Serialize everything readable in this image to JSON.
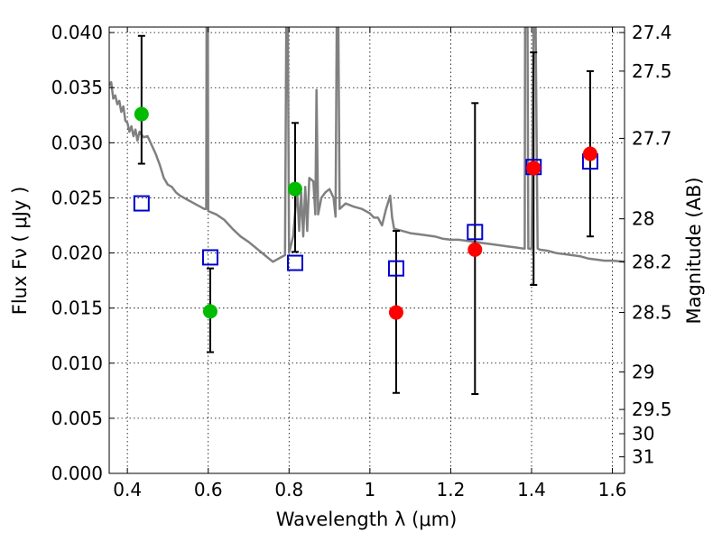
{
  "chart_data": {
    "type": "scatter",
    "xlabel": "Wavelength  λ (μm)",
    "ylabel": "Flux  Fν  ( μJy )",
    "y2label": "Magnitude (AB)",
    "xlim": [
      0.355,
      1.63
    ],
    "ylim": [
      0.0,
      0.0405
    ],
    "xticks": [
      0.4,
      0.6,
      0.8,
      1.0,
      1.2,
      1.4,
      1.6
    ],
    "xtick_labels": [
      "0.4",
      "0.6",
      "0.8",
      "1",
      "1.2",
      "1.4",
      "1.6"
    ],
    "yticks": [
      0.0,
      0.005,
      0.01,
      0.015,
      0.02,
      0.025,
      0.03,
      0.035,
      0.04
    ],
    "ytick_labels": [
      "0.000",
      "0.005",
      "0.010",
      "0.015",
      "0.020",
      "0.025",
      "0.030",
      "0.035",
      "0.040"
    ],
    "y2ticks": [
      {
        "label": "27.4",
        "flux": 0.04
      },
      {
        "label": "27.5",
        "flux": 0.0365
      },
      {
        "label": "27.7",
        "flux": 0.0304
      },
      {
        "label": "28",
        "flux": 0.0231
      },
      {
        "label": "28.2",
        "flux": 0.0192
      },
      {
        "label": "28.5",
        "flux": 0.0146
      },
      {
        "label": "29",
        "flux": 0.0092
      },
      {
        "label": "29.5",
        "flux": 0.0058
      },
      {
        "label": "30",
        "flux": 0.0036
      },
      {
        "label": "31",
        "flux": 0.0015
      }
    ],
    "grid": true,
    "colors": {
      "model": "#808080",
      "green": "#00bb00",
      "red": "#ff0000",
      "square": "#0000cc",
      "errorbar": "#000000"
    },
    "series": [
      {
        "name": "model spectrum",
        "kind": "line",
        "points": [
          [
            0.355,
            0.0352
          ],
          [
            0.36,
            0.0355
          ],
          [
            0.365,
            0.034
          ],
          [
            0.37,
            0.0343
          ],
          [
            0.375,
            0.0335
          ],
          [
            0.38,
            0.0338
          ],
          [
            0.385,
            0.0328
          ],
          [
            0.39,
            0.0333
          ],
          [
            0.395,
            0.032
          ],
          [
            0.4,
            0.0318
          ],
          [
            0.405,
            0.031
          ],
          [
            0.41,
            0.0315
          ],
          [
            0.415,
            0.0306
          ],
          [
            0.42,
            0.0312
          ],
          [
            0.425,
            0.0302
          ],
          [
            0.43,
            0.031
          ],
          [
            0.44,
            0.0305
          ],
          [
            0.45,
            0.0306
          ],
          [
            0.46,
            0.0298
          ],
          [
            0.47,
            0.029
          ],
          [
            0.48,
            0.028
          ],
          [
            0.49,
            0.0268
          ],
          [
            0.5,
            0.0262
          ],
          [
            0.51,
            0.026
          ],
          [
            0.52,
            0.0255
          ],
          [
            0.53,
            0.0252
          ],
          [
            0.54,
            0.025
          ],
          [
            0.55,
            0.0248
          ],
          [
            0.56,
            0.0246
          ],
          [
            0.57,
            0.0244
          ],
          [
            0.58,
            0.0242
          ],
          [
            0.59,
            0.024
          ],
          [
            0.595,
            0.024
          ],
          [
            0.596,
            0.0405
          ],
          [
            0.599,
            0.0405
          ],
          [
            0.6,
            0.0238
          ],
          [
            0.62,
            0.0235
          ],
          [
            0.64,
            0.023
          ],
          [
            0.66,
            0.0222
          ],
          [
            0.68,
            0.0215
          ],
          [
            0.7,
            0.021
          ],
          [
            0.72,
            0.0204
          ],
          [
            0.74,
            0.0198
          ],
          [
            0.75,
            0.0195
          ],
          [
            0.76,
            0.0192
          ],
          [
            0.78,
            0.0196
          ],
          [
            0.79,
            0.0198
          ],
          [
            0.793,
            0.0405
          ],
          [
            0.797,
            0.0405
          ],
          [
            0.8,
            0.02
          ],
          [
            0.81,
            0.0215
          ],
          [
            0.82,
            0.0258
          ],
          [
            0.825,
            0.022
          ],
          [
            0.83,
            0.0255
          ],
          [
            0.835,
            0.0215
          ],
          [
            0.84,
            0.026
          ],
          [
            0.845,
            0.022
          ],
          [
            0.85,
            0.0268
          ],
          [
            0.86,
            0.0265
          ],
          [
            0.865,
            0.0235
          ],
          [
            0.868,
            0.0348
          ],
          [
            0.872,
            0.0235
          ],
          [
            0.88,
            0.025
          ],
          [
            0.89,
            0.0255
          ],
          [
            0.9,
            0.0258
          ],
          [
            0.91,
            0.025
          ],
          [
            0.915,
            0.0233
          ],
          [
            0.918,
            0.0405
          ],
          [
            0.922,
            0.0405
          ],
          [
            0.925,
            0.024
          ],
          [
            0.94,
            0.0245
          ],
          [
            0.96,
            0.0242
          ],
          [
            0.98,
            0.024
          ],
          [
            1.0,
            0.0236
          ],
          [
            1.01,
            0.0232
          ],
          [
            1.02,
            0.0232
          ],
          [
            1.03,
            0.0225
          ],
          [
            1.04,
            0.024
          ],
          [
            1.05,
            0.0252
          ],
          [
            1.055,
            0.0232
          ],
          [
            1.06,
            0.0222
          ],
          [
            1.08,
            0.022
          ],
          [
            1.1,
            0.0218
          ],
          [
            1.12,
            0.0217
          ],
          [
            1.14,
            0.0216
          ],
          [
            1.16,
            0.0215
          ],
          [
            1.18,
            0.0213
          ],
          [
            1.2,
            0.0212
          ],
          [
            1.22,
            0.0212
          ],
          [
            1.24,
            0.0211
          ],
          [
            1.26,
            0.021
          ],
          [
            1.28,
            0.0209
          ],
          [
            1.3,
            0.0208
          ],
          [
            1.32,
            0.0207
          ],
          [
            1.34,
            0.0206
          ],
          [
            1.36,
            0.0205
          ],
          [
            1.38,
            0.0204
          ],
          [
            1.383,
            0.0204
          ],
          [
            1.384,
            0.0405
          ],
          [
            1.39,
            0.0405
          ],
          [
            1.392,
            0.0204
          ],
          [
            1.4,
            0.0204
          ],
          [
            1.405,
            0.0405
          ],
          [
            1.41,
            0.0405
          ],
          [
            1.415,
            0.0204
          ],
          [
            1.42,
            0.0203
          ],
          [
            1.44,
            0.0202
          ],
          [
            1.46,
            0.02
          ],
          [
            1.48,
            0.0199
          ],
          [
            1.5,
            0.0198
          ],
          [
            1.52,
            0.0197
          ],
          [
            1.54,
            0.0195
          ],
          [
            1.56,
            0.0194
          ],
          [
            1.58,
            0.0193
          ],
          [
            1.6,
            0.0193
          ],
          [
            1.63,
            0.0192
          ]
        ]
      },
      {
        "name": "measured flux (green)",
        "kind": "points",
        "points": [
          {
            "x": 0.435,
            "y": 0.0326,
            "yerr_low": 0.0281,
            "yerr_high": 0.0397
          },
          {
            "x": 0.605,
            "y": 0.0147,
            "yerr_low": 0.011,
            "yerr_high": 0.0186
          },
          {
            "x": 0.815,
            "y": 0.0258,
            "yerr_low": 0.0201,
            "yerr_high": 0.0318
          }
        ]
      },
      {
        "name": "measured flux (red)",
        "kind": "points",
        "points": [
          {
            "x": 1.065,
            "y": 0.0146,
            "yerr_low": 0.0073,
            "yerr_high": 0.022
          },
          {
            "x": 1.26,
            "y": 0.0203,
            "yerr_low": 0.0072,
            "yerr_high": 0.0336
          },
          {
            "x": 1.405,
            "y": 0.0277,
            "yerr_low": 0.0171,
            "yerr_high": 0.0382
          },
          {
            "x": 1.545,
            "y": 0.029,
            "yerr_low": 0.0215,
            "yerr_high": 0.0365
          }
        ]
      },
      {
        "name": "model band flux (squares)",
        "kind": "points",
        "points": [
          {
            "x": 0.435,
            "y": 0.0245
          },
          {
            "x": 0.605,
            "y": 0.0196
          },
          {
            "x": 0.815,
            "y": 0.0191
          },
          {
            "x": 1.065,
            "y": 0.0186
          },
          {
            "x": 1.26,
            "y": 0.0219
          },
          {
            "x": 1.405,
            "y": 0.0278
          },
          {
            "x": 1.545,
            "y": 0.0283
          }
        ]
      }
    ]
  }
}
